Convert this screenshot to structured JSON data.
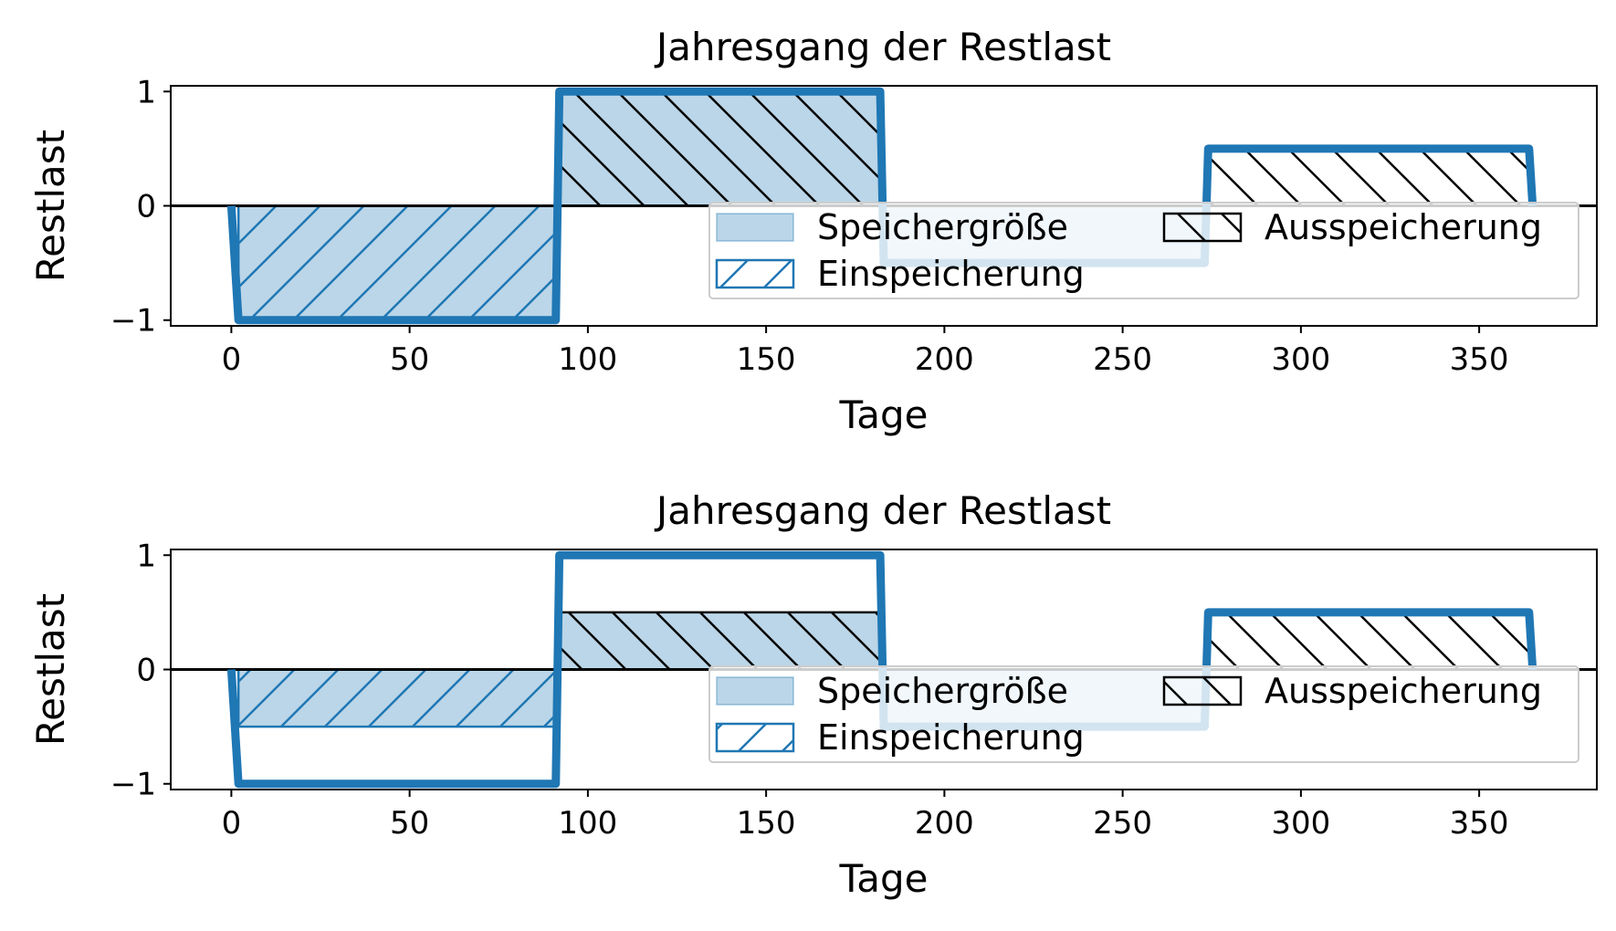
{
  "colors": {
    "line": "#1f77b4",
    "fill": "#1f77b4",
    "hatch_out": "#000000",
    "zero_line": "#000000"
  },
  "chart_data": [
    {
      "type": "line",
      "title": "Jahresgang der Restlast",
      "xlabel": "Tage",
      "ylabel": "Restlast",
      "xlim": [
        -17,
        383
      ],
      "ylim": [
        -1.05,
        1.05
      ],
      "xticks": [
        0,
        50,
        100,
        150,
        200,
        250,
        300,
        350
      ],
      "yticks": [
        -1,
        0,
        1
      ],
      "xtick_labels": [
        "0",
        "50",
        "100",
        "150",
        "200",
        "250",
        "300",
        "350"
      ],
      "ytick_labels": [
        "−1",
        "0",
        "1"
      ],
      "grid": false,
      "legend_position": "lower-right",
      "series": [
        {
          "x": [
            0,
            2,
            91,
            92,
            182,
            183,
            273,
            274,
            364,
            365
          ],
          "y": [
            0,
            -1,
            -1,
            1,
            1,
            -0.5,
            -0.5,
            0.5,
            0.5,
            0
          ]
        }
      ],
      "areas": [
        {
          "kind": "speicher",
          "x": [
            92,
            182,
            183,
            273
          ],
          "y": [
            1,
            1,
            -0.5,
            -0.5
          ]
        },
        {
          "kind": "einspeicherung",
          "x": [
            2,
            91
          ],
          "y": [
            -1,
            -1
          ]
        },
        {
          "kind": "ausspeicherung",
          "x": [
            92,
            182
          ],
          "y": [
            1,
            1
          ]
        },
        {
          "kind": "ausspeicherung",
          "x": [
            274,
            364,
            365
          ],
          "y": [
            0.5,
            0.5,
            0
          ]
        }
      ],
      "legend": [
        "Speichergröße",
        "Einspeicherung",
        "Ausspeicherung"
      ]
    },
    {
      "type": "line",
      "title": "Jahresgang der Restlast",
      "xlabel": "Tage",
      "ylabel": "Restlast",
      "xlim": [
        -17,
        383
      ],
      "ylim": [
        -1.05,
        1.05
      ],
      "xticks": [
        0,
        50,
        100,
        150,
        200,
        250,
        300,
        350
      ],
      "yticks": [
        -1,
        0,
        1
      ],
      "xtick_labels": [
        "0",
        "50",
        "100",
        "150",
        "200",
        "250",
        "300",
        "350"
      ],
      "ytick_labels": [
        "−1",
        "0",
        "1"
      ],
      "grid": false,
      "legend_position": "lower-right",
      "series": [
        {
          "x": [
            0,
            2,
            91,
            92,
            182,
            183,
            273,
            274,
            364,
            365
          ],
          "y": [
            0,
            -1,
            -1,
            1,
            1,
            -0.5,
            -0.5,
            0.5,
            0.5,
            0
          ]
        }
      ],
      "areas": [
        {
          "kind": "speicher",
          "x": [
            92,
            182,
            183,
            273
          ],
          "y": [
            0.5,
            0.5,
            -0.5,
            -0.5
          ]
        },
        {
          "kind": "einspeicherung",
          "x": [
            2,
            91
          ],
          "y": [
            -0.5,
            -0.5
          ]
        },
        {
          "kind": "ausspeicherung",
          "x": [
            92,
            182
          ],
          "y": [
            0.5,
            0.5
          ]
        },
        {
          "kind": "ausspeicherung",
          "x": [
            274,
            364,
            365
          ],
          "y": [
            0.5,
            0.5,
            0
          ]
        }
      ],
      "legend": [
        "Speichergröße",
        "Einspeicherung",
        "Ausspeicherung"
      ]
    }
  ]
}
